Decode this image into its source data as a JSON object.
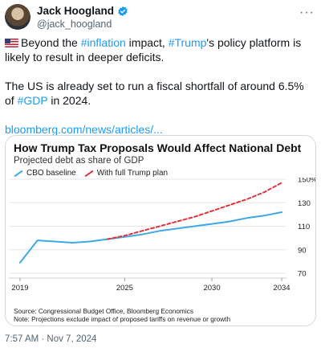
{
  "author": {
    "name": "Jack Hoogland",
    "handle": "@jack_hoogland"
  },
  "tweet": {
    "line1_pre": "Beyond the ",
    "tag1": "#inflation",
    "line1_mid": " impact, ",
    "tag2": "#Trump",
    "line1_post": "'s policy platform is likely to result in deeper deficits.",
    "line2_pre": "The US is already set to run a fiscal shortfall of around 6.5% of ",
    "tag3": "#GDP",
    "line2_post": " in 2024.",
    "link": "bloomberg.com/news/articles/..."
  },
  "card": {
    "title": "How Trump Tax Proposals Would Affect National Debt",
    "subtitle": "Projected debt as share of GDP",
    "legend_baseline": "CBO baseline",
    "legend_trump": "With full Trump plan",
    "source_line1": "Source: Congressional Budget Office, Bloomberg Economics",
    "source_line2": "Note: Projections exclude impact of proposed tariffs on revenue or growth"
  },
  "chart_data": {
    "type": "line",
    "title": "How Trump Tax Proposals Would Affect National Debt",
    "subtitle": "Projected debt as share of GDP",
    "xlabel": "",
    "ylabel": "",
    "x_ticks": [
      2019,
      2025,
      2030,
      2034
    ],
    "y_ticks": [
      70,
      90,
      110,
      130,
      150
    ],
    "y_tick_labels": [
      "70",
      "90",
      "110",
      "130",
      "150%"
    ],
    "xlim": [
      2019,
      2034
    ],
    "ylim": [
      70,
      150
    ],
    "grid": true,
    "legend_position": "top-left",
    "colors": {
      "baseline": "#3ea8e6",
      "trump": "#e0343c"
    },
    "series": [
      {
        "name": "CBO baseline",
        "style": "solid",
        "x": [
          2019,
          2020,
          2021,
          2022,
          2023,
          2024,
          2025,
          2026,
          2027,
          2028,
          2029,
          2030,
          2031,
          2032,
          2033,
          2034
        ],
        "values": [
          79,
          98,
          97,
          96,
          97,
          99,
          101,
          103,
          106,
          108,
          110,
          112,
          114,
          117,
          119,
          122
        ]
      },
      {
        "name": "With full Trump plan",
        "style": "dashed",
        "x": [
          2024,
          2025,
          2026,
          2027,
          2028,
          2029,
          2030,
          2031,
          2032,
          2033,
          2034
        ],
        "values": [
          99,
          102,
          106,
          110,
          114,
          118,
          123,
          128,
          133,
          139,
          147
        ]
      }
    ]
  },
  "timestamp": "7:57 AM · Nov 7, 2024"
}
